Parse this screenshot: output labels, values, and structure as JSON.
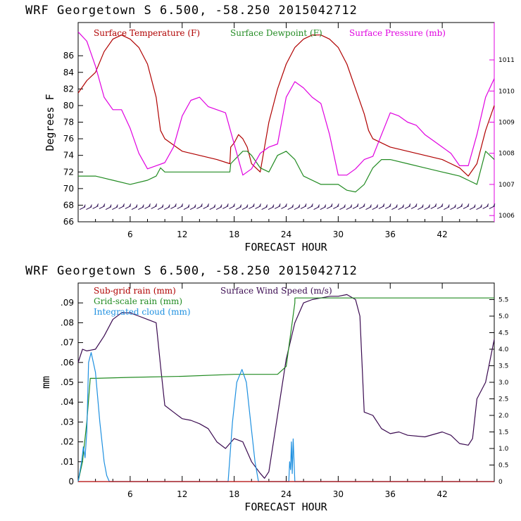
{
  "colors": {
    "temperature": "#b00000",
    "dewpoint": "#228b22",
    "pressure": "#e000e0",
    "subgrid_rain": "#b00000",
    "wind_speed": "#3a0a50",
    "gridscale_rain": "#228b22",
    "cloud": "#1e90e0"
  },
  "chart_data": [
    {
      "type": "line",
      "header": "WRF   Georgetown S   6.500, -58.250  2015042712",
      "xlabel": "FORECAST HOUR",
      "ylabel": "Degrees F",
      "xlim": [
        0,
        48
      ],
      "ylim": [
        66,
        90
      ],
      "y2lim": [
        1005.8,
        1012.2
      ],
      "xticks": [
        "6",
        "12",
        "18",
        "24",
        "30",
        "36",
        "42"
      ],
      "yticks": [
        "66",
        "68",
        "70",
        "72",
        "74",
        "76",
        "78",
        "80",
        "82",
        "84",
        "86"
      ],
      "y2ticks": [
        "1006",
        "1007",
        "1008",
        "1009",
        "1010",
        "1011"
      ],
      "legend": [
        "Surface Temperature (F)",
        "Surface Dewpoint (F)",
        "Surface Pressure (mb)"
      ],
      "legend_position": "top",
      "series": [
        {
          "name": "Surface Temperature (F)",
          "axis": "left",
          "x": [
            0,
            1,
            2,
            3,
            4,
            5,
            6,
            7,
            8,
            9,
            9.5,
            10,
            12,
            14,
            16,
            17.5,
            17.6,
            18,
            18.5,
            19,
            19.5,
            20,
            20.5,
            21,
            22,
            23,
            24,
            25,
            26,
            27,
            28,
            29,
            30,
            31,
            32,
            33,
            33.5,
            34,
            36,
            38,
            40,
            42,
            44,
            45,
            46,
            47,
            48
          ],
          "values": [
            81.5,
            83,
            84,
            86.5,
            88,
            88.5,
            88,
            87,
            85,
            81,
            77,
            76,
            74.5,
            74,
            73.5,
            73,
            75,
            75.5,
            76.5,
            76,
            75,
            73,
            72.5,
            72,
            78,
            82,
            85,
            87,
            88,
            88.5,
            88.5,
            88,
            87,
            85,
            82,
            79,
            77,
            76,
            75,
            74.5,
            74,
            73.5,
            72.5,
            71.5,
            73,
            77,
            80
          ]
        },
        {
          "name": "Surface Dewpoint (F)",
          "axis": "left",
          "x": [
            0,
            2,
            4,
            6,
            8,
            9,
            9.5,
            10,
            12,
            14,
            16,
            17.5,
            17.6,
            19,
            19.5,
            20,
            21,
            22,
            23,
            24,
            25,
            26,
            28,
            30,
            31,
            32,
            33,
            34,
            35,
            36,
            38,
            40,
            42,
            44,
            45,
            46,
            47,
            48
          ],
          "values": [
            71.5,
            71.5,
            71,
            70.5,
            71,
            71.5,
            72.5,
            72,
            72,
            72,
            72,
            72,
            73,
            74.5,
            74.5,
            74,
            72.5,
            72,
            74,
            74.5,
            73.5,
            71.5,
            70.5,
            70.5,
            69.8,
            69.6,
            70.5,
            72.5,
            73.5,
            73.5,
            73,
            72.5,
            72,
            71.5,
            71,
            70.5,
            74.5,
            73.5
          ]
        },
        {
          "name": "Surface Pressure (mb)",
          "axis": "right",
          "x": [
            0,
            1,
            2,
            3,
            4,
            5,
            6,
            7,
            8,
            9,
            10,
            11,
            12,
            13,
            14,
            15,
            16,
            17,
            18,
            19,
            20,
            21,
            22,
            23,
            24,
            25,
            26,
            27,
            28,
            29,
            30,
            31,
            32,
            33,
            34,
            35,
            36,
            37,
            38,
            39,
            40,
            41,
            42,
            43,
            44,
            45,
            46,
            47,
            48
          ],
          "values": [
            1011.9,
            1011.6,
            1010.8,
            1009.8,
            1009.4,
            1009.4,
            1008.8,
            1008,
            1007.5,
            1007.6,
            1007.7,
            1008.2,
            1009.2,
            1009.7,
            1009.8,
            1009.5,
            1009.4,
            1009.3,
            1008.3,
            1007.3,
            1007.5,
            1008,
            1008.2,
            1008.3,
            1009.8,
            1010.3,
            1010.1,
            1009.8,
            1009.6,
            1008.6,
            1007.3,
            1007.3,
            1007.5,
            1007.8,
            1007.9,
            1008.6,
            1009.3,
            1009.2,
            1009,
            1008.9,
            1008.6,
            1008.4,
            1008.2,
            1008,
            1007.6,
            1007.6,
            1008.6,
            1009.8,
            1010.4
          ]
        }
      ],
      "wind_barbs": true
    },
    {
      "type": "line",
      "header": "WRF   Georgetown S   6.500, -58.250  2015042712",
      "xlabel": "FORECAST HOUR",
      "ylabel": "mm",
      "xlim": [
        0,
        48
      ],
      "ylim": [
        0,
        0.1
      ],
      "y2lim": [
        0,
        6
      ],
      "xticks": [
        "6",
        "12",
        "18",
        "24",
        "30",
        "36",
        "42"
      ],
      "yticks": [
        "0",
        ".01",
        ".02",
        ".03",
        ".04",
        ".05",
        ".06",
        ".07",
        ".08",
        ".09"
      ],
      "y2ticks": [
        "0",
        "0.5",
        "1.0",
        "1.5",
        "2.0",
        "2.5",
        "3.0",
        "3.5",
        "4.0",
        "4.5",
        "5.0",
        "5.5"
      ],
      "legend": [
        "Sub-grid rain (mm)",
        "Surface Wind Speed (m/s)",
        "Grid-scale rain (mm)",
        "Integrated cloud (mm)"
      ],
      "legend_position": "top-left",
      "series": [
        {
          "name": "Surface Wind Speed (m/s)",
          "axis": "right",
          "x": [
            0,
            0.5,
            1,
            2,
            3,
            4,
            5,
            6,
            7,
            8,
            9,
            9.5,
            10,
            11,
            12,
            13,
            14,
            15,
            16,
            17,
            18,
            19,
            20,
            21,
            21.5,
            22,
            23,
            24,
            25,
            26,
            27,
            28,
            29,
            30,
            31,
            32,
            32.5,
            33,
            34,
            35,
            36,
            37,
            38,
            40,
            42,
            43,
            44,
            45,
            45.5,
            46,
            47,
            48
          ],
          "values": [
            3.6,
            4.0,
            3.95,
            4.0,
            4.4,
            4.9,
            5.1,
            5.1,
            5.0,
            4.9,
            4.8,
            3.5,
            2.3,
            2.1,
            1.9,
            1.85,
            1.75,
            1.6,
            1.2,
            1.0,
            1.3,
            1.2,
            0.6,
            0.25,
            0.1,
            0.3,
            2.0,
            3.7,
            4.8,
            5.4,
            5.5,
            5.55,
            5.6,
            5.6,
            5.65,
            5.5,
            5.0,
            2.1,
            2.0,
            1.6,
            1.45,
            1.5,
            1.4,
            1.35,
            1.5,
            1.4,
            1.15,
            1.1,
            1.3,
            2.5,
            3.0,
            4.3
          ]
        },
        {
          "name": "Grid-scale rain (mm)",
          "axis": "left",
          "x": [
            0,
            0.5,
            1,
            1.4,
            2,
            6,
            12,
            18,
            23,
            24,
            25,
            25.01,
            30,
            36,
            42,
            48
          ],
          "values": [
            0,
            0.01,
            0.03,
            0.052,
            0.052,
            0.0525,
            0.053,
            0.054,
            0.054,
            0.058,
            0.09,
            0.0925,
            0.0925,
            0.0925,
            0.0925,
            0.0925
          ]
        },
        {
          "name": "Integrated cloud (mm)",
          "axis": "left",
          "x": [
            0,
            0.4,
            0.6,
            0.8,
            1.0,
            1.2,
            1.5,
            2.0,
            2.5,
            3.0,
            3.3,
            3.6,
            17.3,
            17.8,
            18.3,
            18.9,
            19.4,
            19.9,
            20.4,
            20.8,
            24.3,
            24.4,
            24.5,
            24.6,
            24.7,
            24.8,
            25.0,
            48
          ],
          "values": [
            0,
            0.01,
            0.0175,
            0.012,
            0.025,
            0.06,
            0.065,
            0.055,
            0.03,
            0.01,
            0.003,
            0,
            0,
            0.03,
            0.05,
            0.0565,
            0.05,
            0.03,
            0.01,
            0,
            0,
            0.01,
            0.006,
            0.02,
            0.004,
            0.0215,
            0,
            0
          ]
        },
        {
          "name": "Sub-grid rain (mm)",
          "axis": "left",
          "x": [
            0,
            48
          ],
          "values": [
            0,
            0
          ]
        }
      ]
    }
  ]
}
